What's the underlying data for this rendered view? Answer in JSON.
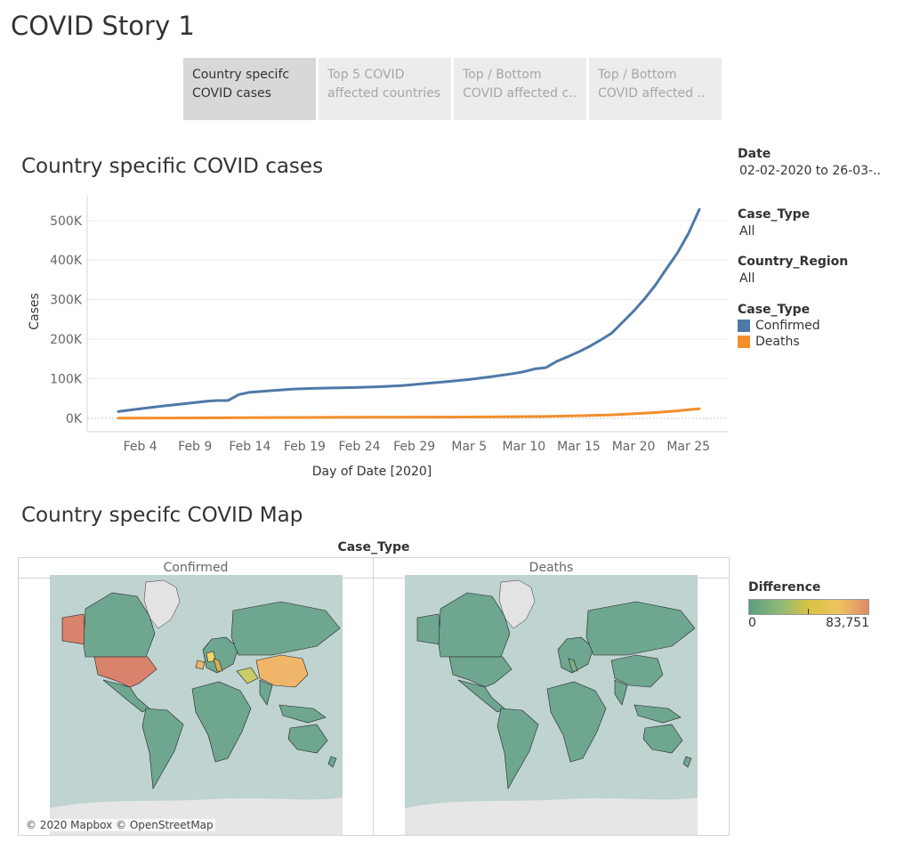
{
  "story": {
    "title": "COVID Story 1",
    "tabs": [
      {
        "line1": "Country specifc",
        "line2": "COVID cases"
      },
      {
        "line1": "Top 5 COVID",
        "line2": "affected countries"
      },
      {
        "line1": "Top / Bottom",
        "line2": "COVID affected c.."
      },
      {
        "line1": "Top / Bottom",
        "line2": "COVID  affected .."
      }
    ]
  },
  "chart_section": {
    "title": "Country specific COVID  cases"
  },
  "chart_data": {
    "type": "line",
    "title": "Country specific COVID  cases",
    "xlabel": "Day of Date [2020]",
    "ylabel": "Cases",
    "ylim": [
      0,
      540000
    ],
    "yticks": [
      0,
      100000,
      200000,
      300000,
      400000,
      500000
    ],
    "ytick_labels": [
      "0K",
      "100K",
      "200K",
      "300K",
      "400K",
      "500K"
    ],
    "xticks": [
      "Feb 4",
      "Feb 9",
      "Feb 14",
      "Feb 19",
      "Feb 24",
      "Feb 29",
      "Mar 5",
      "Mar 10",
      "Mar 15",
      "Mar 20",
      "Mar 25"
    ],
    "x_start": "2020-02-02",
    "x_end": "2020-03-26",
    "grid": true,
    "series": [
      {
        "name": "Confirmed",
        "color": "#4e79a7",
        "x": [
          "2020-02-02",
          "2020-02-04",
          "2020-02-06",
          "2020-02-08",
          "2020-02-10",
          "2020-02-11",
          "2020-02-12",
          "2020-02-13",
          "2020-02-14",
          "2020-02-16",
          "2020-02-18",
          "2020-02-20",
          "2020-02-22",
          "2020-02-24",
          "2020-02-26",
          "2020-02-28",
          "2020-03-01",
          "2020-03-03",
          "2020-03-05",
          "2020-03-07",
          "2020-03-09",
          "2020-03-10",
          "2020-03-11",
          "2020-03-12",
          "2020-03-13",
          "2020-03-14",
          "2020-03-15",
          "2020-03-16",
          "2020-03-17",
          "2020-03-18",
          "2020-03-19",
          "2020-03-20",
          "2020-03-21",
          "2020-03-22",
          "2020-03-23",
          "2020-03-24",
          "2020-03-25",
          "2020-03-26"
        ],
        "values": [
          17000,
          24000,
          31000,
          37000,
          43000,
          45000,
          45000,
          60000,
          66000,
          70000,
          74000,
          76000,
          77000,
          78000,
          80000,
          83000,
          88000,
          93000,
          98000,
          105000,
          113000,
          118000,
          125000,
          128000,
          144000,
          156000,
          168000,
          182000,
          198000,
          215000,
          243000,
          271000,
          302000,
          337000,
          378000,
          418000,
          467000,
          528000
        ]
      },
      {
        "name": "Deaths",
        "color": "#f28e2b",
        "x": [
          "2020-02-02",
          "2020-02-08",
          "2020-02-14",
          "2020-02-20",
          "2020-02-26",
          "2020-03-03",
          "2020-03-08",
          "2020-03-12",
          "2020-03-15",
          "2020-03-18",
          "2020-03-20",
          "2020-03-22",
          "2020-03-24",
          "2020-03-26"
        ],
        "values": [
          360,
          800,
          1500,
          2200,
          2800,
          3200,
          3800,
          4700,
          6500,
          8800,
          11400,
          14700,
          19000,
          24000
        ]
      }
    ]
  },
  "filters": {
    "date_label": "Date",
    "date_value": "02-02-2020 to 26-03-..",
    "case_type_label": "Case_Type",
    "case_type_value": "All",
    "country_label": "Country_Region",
    "country_value": "All",
    "legend_title": "Case_Type",
    "legend_items": [
      {
        "label": "Confirmed",
        "color": "#4e79a7"
      },
      {
        "label": "Deaths",
        "color": "#f28e2b"
      }
    ]
  },
  "map_section": {
    "title": "Country specifc COVID Map",
    "column_header": "Case_Type",
    "panes": [
      "Confirmed",
      "Deaths"
    ],
    "attribution": "© 2020 Mapbox © OpenStreetMap",
    "legend": {
      "title": "Difference",
      "min_label": "0",
      "max_label": "83,751"
    },
    "colors": {
      "ocean": "#bfd3d1",
      "land": "#6ea690",
      "high": "#d9826c",
      "mid": "#efb66a",
      "low": "#c8cc6a",
      "ice": "#e3e3e3"
    }
  }
}
